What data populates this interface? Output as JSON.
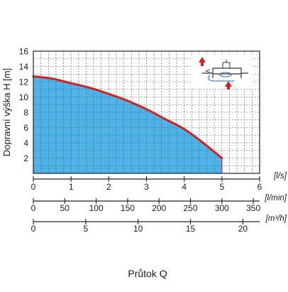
{
  "chart_data": {
    "type": "area",
    "ylabel": "Dopravní výška H [m]",
    "xlabel": "Průtok Q",
    "ylim": [
      0,
      16
    ],
    "xlim": [
      0,
      6
    ],
    "grid": true,
    "yticks": [
      "2",
      "4",
      "6",
      "8",
      "10",
      "12",
      "14",
      "16"
    ],
    "x_axes": [
      {
        "unit_label": "[l/s]",
        "range": [
          0,
          6
        ],
        "ticks": [
          {
            "value": 0,
            "label": "0"
          },
          {
            "value": 1,
            "label": "1"
          },
          {
            "value": 2,
            "label": "2"
          },
          {
            "value": 3,
            "label": "3"
          },
          {
            "value": 4,
            "label": "4"
          },
          {
            "value": 5,
            "label": "5"
          },
          {
            "value": 6,
            "label": "6"
          }
        ]
      },
      {
        "unit_label": "[l/min]",
        "range": [
          0,
          360
        ],
        "ticks": [
          {
            "value": 0,
            "label": "0"
          },
          {
            "value": 50,
            "label": "50"
          },
          {
            "value": 100,
            "label": "100"
          },
          {
            "value": 150,
            "label": "150"
          },
          {
            "value": 200,
            "label": "200"
          },
          {
            "value": 250,
            "label": "250"
          },
          {
            "value": 300,
            "label": "300"
          },
          {
            "value": 350,
            "label": "350"
          }
        ]
      },
      {
        "unit_label": "[m³/h]",
        "range": [
          0,
          21.6
        ],
        "ticks": [
          {
            "value": 0,
            "label": "0"
          },
          {
            "value": 5,
            "label": "5"
          },
          {
            "value": 10,
            "label": "10"
          },
          {
            "value": 15,
            "label": "15"
          },
          {
            "value": 20,
            "label": "20"
          }
        ]
      }
    ],
    "series": [
      {
        "x": [
          0,
          0.5,
          1,
          1.5,
          2,
          2.5,
          3,
          3.5,
          4,
          4.5,
          5
        ],
        "y": [
          12.7,
          12.4,
          11.8,
          11.2,
          10.4,
          9.5,
          8.4,
          7.1,
          5.8,
          4.0,
          2.0
        ]
      }
    ],
    "colors": {
      "fill": "#4eb3e8",
      "line": "#d42020",
      "grid": "#555555",
      "arrow": "#d42020"
    },
    "inset_icon": "pump-flow-diagram"
  }
}
